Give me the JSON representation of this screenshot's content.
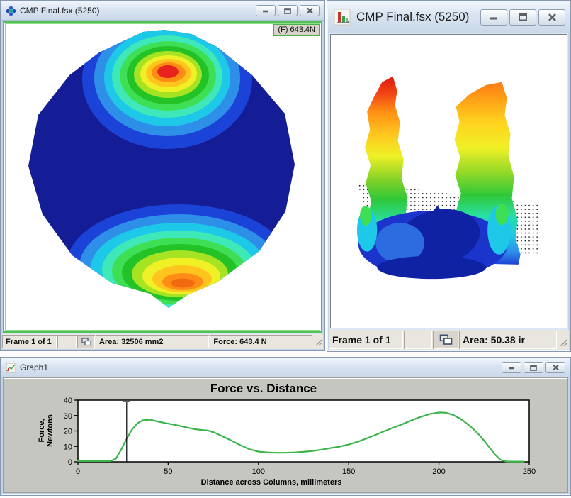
{
  "windows": {
    "map2d": {
      "title": "CMP Final.fsx (5250)",
      "force_badge": "(F) 643.4N",
      "status": {
        "frame": "Frame 1 of 1",
        "area": "Area: 32506 mm2",
        "force": "Force: 643.4 N"
      }
    },
    "map3d": {
      "title": "CMP Final.fsx (5250)",
      "status": {
        "frame": "Frame 1 of 1",
        "area": "Area: 50.38 ir"
      }
    },
    "graph": {
      "title": "Graph1"
    }
  },
  "chart_data": {
    "type": "line",
    "title": "Force vs. Distance",
    "xlabel": "Distance across Columns, millimeters",
    "ylabel": "Force, Newtons",
    "ylabel_lines": [
      "Force,",
      "Newtons"
    ],
    "xlim": [
      0,
      250
    ],
    "ylim": [
      0,
      40
    ],
    "xticks": [
      0,
      50,
      100,
      150,
      200,
      250
    ],
    "yticks": [
      0,
      10,
      20,
      30,
      40
    ],
    "cursor_x": 27,
    "line_color": "#3cb44b",
    "grid": false,
    "legend": false,
    "x": [
      0,
      8,
      14,
      18,
      21,
      24,
      27,
      30,
      33,
      36,
      40,
      44,
      48,
      52,
      56,
      60,
      64,
      68,
      72,
      76,
      80,
      85,
      90,
      95,
      100,
      105,
      110,
      115,
      120,
      125,
      130,
      135,
      140,
      145,
      150,
      155,
      160,
      165,
      170,
      175,
      180,
      185,
      190,
      195,
      200,
      204,
      208,
      212,
      216,
      219,
      222,
      225,
      228,
      231,
      234,
      237,
      241,
      247
    ],
    "y": [
      0.5,
      0.5,
      0.5,
      0.5,
      2,
      8,
      15,
      21,
      25,
      27,
      27.3,
      26.2,
      25.2,
      24.3,
      23.4,
      22.4,
      21.3,
      20.7,
      20.3,
      18.8,
      16.6,
      13.8,
      10.8,
      8.2,
      6.6,
      6.1,
      5.9,
      5.9,
      6.1,
      6.5,
      7.1,
      7.9,
      8.9,
      9.9,
      11.2,
      13,
      15.2,
      17.5,
      20,
      22.2,
      24.5,
      27,
      29.2,
      31,
      32,
      31.8,
      30.3,
      27.8,
      24.3,
      21.3,
      17.8,
      13.8,
      9.3,
      4.8,
      1.4,
      0.3,
      0.2,
      0.2
    ]
  },
  "colors": {
    "map_border_green": "#53c253",
    "body_navy": "#141d96",
    "curve_green": "#3cb44b",
    "chart_background": "#c6c6c1",
    "heat_palette": [
      "#141d96",
      "#1c43d8",
      "#2e8fe8",
      "#1ec8e8",
      "#3fe8b8",
      "#3fdf55",
      "#23c328",
      "#a6e322",
      "#eff026",
      "#ffc41e",
      "#ff8c14",
      "#e8221c"
    ]
  }
}
